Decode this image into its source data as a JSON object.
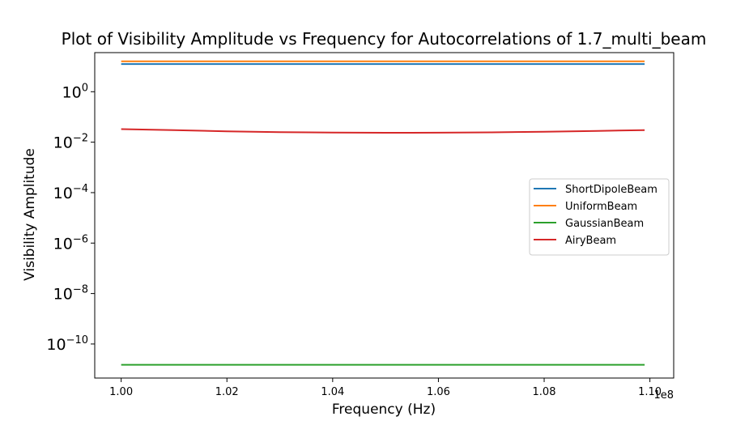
{
  "chart_data": {
    "type": "line",
    "title": "Plot of Visibility Amplitude vs Frequency for Autocorrelations of 1.7_multi_beam",
    "xlabel": "Frequency (Hz)",
    "ylabel": "Visibility Amplitude",
    "x_offset_text": "1e8",
    "x_ticks": [
      1.0,
      1.02,
      1.04,
      1.06,
      1.08,
      1.1
    ],
    "x_tick_labels": [
      "1.00",
      "1.02",
      "1.04",
      "1.06",
      "1.08",
      "1.10"
    ],
    "y_ticks": [
      0,
      -2,
      -4,
      -6,
      -8,
      -10
    ],
    "y_tick_base": "10",
    "y_tick_exponents": [
      "0",
      "−2",
      "−4",
      "−6",
      "−8",
      "−10"
    ],
    "x_scale": 100000000.0,
    "xlim": [
      0.995,
      1.1045
    ],
    "ylim_log10": [
      -11.35,
      1.55
    ],
    "y_scale": "log",
    "grid": false,
    "legend_position": "center right",
    "x": [
      1.0,
      1.01,
      1.02,
      1.03,
      1.04,
      1.05,
      1.06,
      1.07,
      1.08,
      1.09,
      1.099
    ],
    "series": [
      {
        "name": "ShortDipoleBeam",
        "color": "#1f77b4",
        "values": [
          12.5,
          12.5,
          12.5,
          12.5,
          12.5,
          12.5,
          12.5,
          12.5,
          12.5,
          12.5,
          12.5
        ]
      },
      {
        "name": "UniformBeam",
        "color": "#ff7f0e",
        "values": [
          16.0,
          16.0,
          16.0,
          16.0,
          16.0,
          16.0,
          16.0,
          16.0,
          16.0,
          16.0,
          16.0
        ]
      },
      {
        "name": "GaussianBeam",
        "color": "#2ca02c",
        "values": [
          1.5e-11,
          1.5e-11,
          1.5e-11,
          1.5e-11,
          1.5e-11,
          1.5e-11,
          1.5e-11,
          1.5e-11,
          1.5e-11,
          1.5e-11,
          1.5e-11
        ]
      },
      {
        "name": "AiryBeam",
        "color": "#d62728",
        "values": [
          0.033,
          0.03,
          0.027,
          0.025,
          0.024,
          0.0235,
          0.0238,
          0.0245,
          0.026,
          0.028,
          0.03
        ]
      }
    ]
  }
}
